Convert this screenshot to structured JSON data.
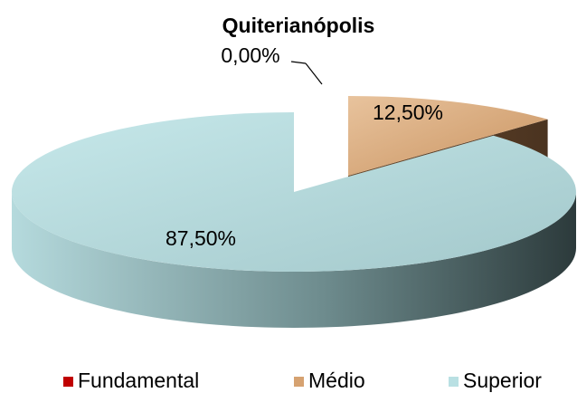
{
  "chart_data": {
    "type": "pie",
    "title": "Quiterianópolis",
    "categories": [
      "Fundamental",
      "Médio",
      "Superior"
    ],
    "values": [
      0,
      12.5,
      87.5
    ],
    "value_labels": [
      "0,00%",
      "12,50%",
      "87,50%"
    ],
    "colors": [
      "#c00000",
      "#d6a271",
      "#b9e0e3"
    ],
    "legend": "bottom"
  }
}
